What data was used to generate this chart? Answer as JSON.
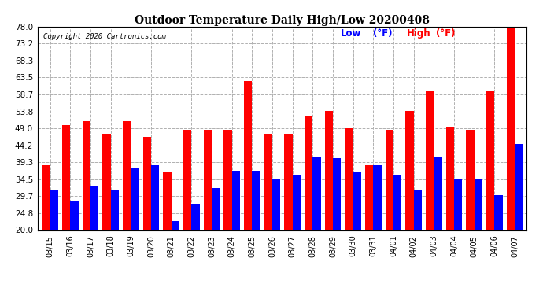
{
  "title": "Outdoor Temperature Daily High/Low 20200408",
  "copyright": "Copyright 2020 Cartronics.com",
  "legend_low": "Low",
  "legend_high": "High",
  "legend_unit": "(°F)",
  "low_color": "#0000ff",
  "high_color": "#ff0000",
  "background_color": "#ffffff",
  "grid_color": "#b0b0b0",
  "ylim": [
    20.0,
    78.0
  ],
  "yticks": [
    20.0,
    24.8,
    29.7,
    34.5,
    39.3,
    44.2,
    49.0,
    53.8,
    58.7,
    63.5,
    68.3,
    73.2,
    78.0
  ],
  "dates": [
    "03/15",
    "03/16",
    "03/17",
    "03/18",
    "03/19",
    "03/20",
    "03/21",
    "03/22",
    "03/23",
    "03/24",
    "03/25",
    "03/26",
    "03/27",
    "03/28",
    "03/29",
    "03/30",
    "03/31",
    "04/01",
    "04/02",
    "04/03",
    "04/04",
    "04/05",
    "04/06",
    "04/07"
  ],
  "highs": [
    38.5,
    50.0,
    51.0,
    47.5,
    51.0,
    46.5,
    36.5,
    48.5,
    48.5,
    48.5,
    62.5,
    47.5,
    47.5,
    52.5,
    54.0,
    49.0,
    38.5,
    48.5,
    54.0,
    59.5,
    49.5,
    48.5,
    59.5,
    78.0
  ],
  "lows": [
    31.5,
    28.5,
    32.5,
    31.5,
    37.5,
    38.5,
    22.5,
    27.5,
    32.0,
    37.0,
    37.0,
    34.5,
    35.5,
    41.0,
    40.5,
    36.5,
    38.5,
    35.5,
    31.5,
    41.0,
    34.5,
    34.5,
    30.0,
    44.5
  ]
}
